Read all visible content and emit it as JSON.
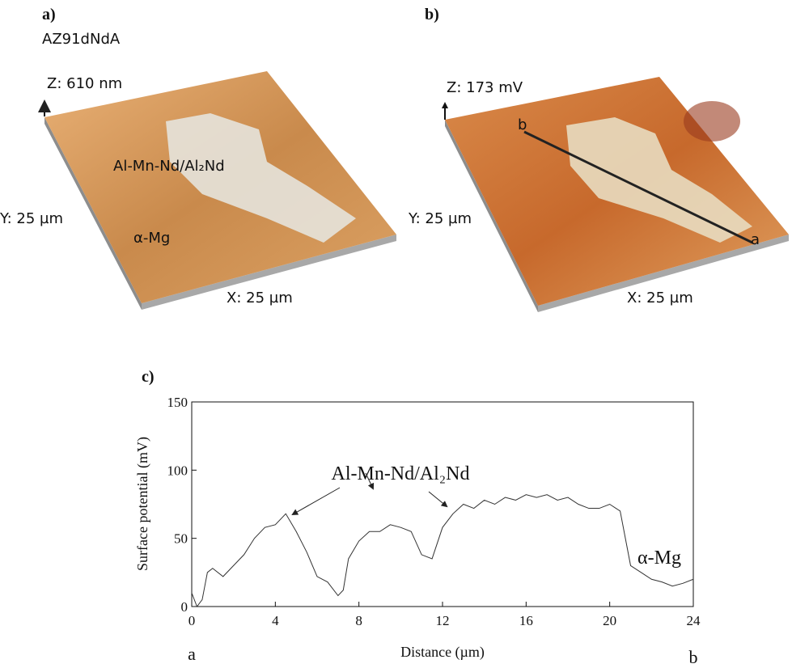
{
  "panel_a": {
    "label": "a)",
    "sample": "AZ91dNdA",
    "z_axis": "Z: 610 nm",
    "y_axis": "Y: 25 µm",
    "x_axis": "X: 25 µm",
    "phase_1": "Al-Mn-Nd/Al₂Nd",
    "phase_2": "α-Mg"
  },
  "panel_b": {
    "label": "b)",
    "z_axis": "Z: 173 mV",
    "y_axis": "Y: 25 µm",
    "x_axis": "X: 25 µm",
    "line_start": "b",
    "line_end": "a"
  },
  "chart_data": {
    "type": "line",
    "panel_label": "c)",
    "x_label": "Distance (µm)",
    "y_label": "Surface potential (mV)",
    "start_label": "a",
    "end_label": "b",
    "annotations": [
      "Al-Mn-Nd/Al₂Nd",
      "α-Mg"
    ],
    "color": "#333333",
    "x": [
      0,
      0.25,
      0.5,
      0.75,
      1,
      1.5,
      2,
      2.5,
      3,
      3.5,
      4,
      4.5,
      5,
      5.5,
      6,
      6.5,
      7,
      7.25,
      7.5,
      8,
      8.5,
      9,
      9.5,
      10,
      10.5,
      11,
      11.5,
      12,
      12.5,
      13,
      13.5,
      14,
      14.5,
      15,
      15.5,
      16,
      16.5,
      17,
      17.5,
      18,
      18.5,
      19,
      19.5,
      20,
      20.5,
      21,
      21.5,
      22,
      22.5,
      23,
      23.5,
      24
    ],
    "values": [
      10,
      0,
      5,
      25,
      28,
      22,
      30,
      38,
      50,
      58,
      60,
      68,
      55,
      40,
      22,
      18,
      8,
      12,
      35,
      48,
      55,
      55,
      60,
      58,
      55,
      38,
      35,
      58,
      68,
      75,
      72,
      78,
      75,
      80,
      78,
      82,
      80,
      82,
      78,
      80,
      75,
      72,
      72,
      75,
      70,
      30,
      25,
      20,
      18,
      15,
      17,
      20
    ],
    "xlim": [
      0,
      24
    ],
    "xticks": [
      0,
      4,
      8,
      12,
      16,
      20,
      24
    ],
    "ylim": [
      0,
      150
    ],
    "yticks": [
      0,
      50,
      100,
      150
    ]
  }
}
